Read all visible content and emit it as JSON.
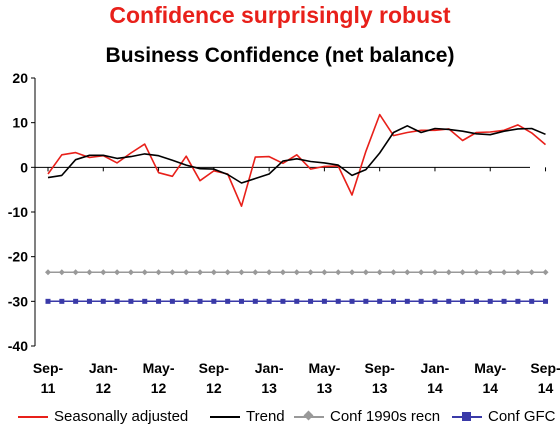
{
  "header": {
    "headline": "Confidence surprisingly robust"
  },
  "chart_data": {
    "type": "line",
    "title": "Business Confidence (net balance)",
    "xlabel": "",
    "ylabel": "",
    "ylim": [
      -40,
      20
    ],
    "yticks": [
      20,
      10,
      0,
      -10,
      -20,
      -30,
      -40
    ],
    "grid": false,
    "legend_position": "bottom",
    "x_tick_labels": [
      {
        "month": "Sep-",
        "year": "11"
      },
      {
        "month": "Jan-",
        "year": "12"
      },
      {
        "month": "May-",
        "year": "12"
      },
      {
        "month": "Sep-",
        "year": "12"
      },
      {
        "month": "Jan-",
        "year": "13"
      },
      {
        "month": "May-",
        "year": "13"
      },
      {
        "month": "Sep-",
        "year": "13"
      },
      {
        "month": "Jan-",
        "year": "14"
      },
      {
        "month": "May-",
        "year": "14"
      },
      {
        "month": "Sep-",
        "year": "14"
      }
    ],
    "x": [
      "Sep-11",
      "Oct-11",
      "Nov-11",
      "Dec-11",
      "Jan-12",
      "Feb-12",
      "Mar-12",
      "Apr-12",
      "May-12",
      "Jun-12",
      "Jul-12",
      "Aug-12",
      "Sep-12",
      "Oct-12",
      "Nov-12",
      "Dec-12",
      "Jan-13",
      "Feb-13",
      "Mar-13",
      "Apr-13",
      "May-13",
      "Jun-13",
      "Jul-13",
      "Aug-13",
      "Sep-13",
      "Oct-13",
      "Nov-13",
      "Dec-13",
      "Jan-14",
      "Feb-14",
      "Mar-14",
      "Apr-14",
      "May-14",
      "Jun-14",
      "Jul-14",
      "Aug-14",
      "Sep-14"
    ],
    "series": [
      {
        "name": "Seasonally adjusted",
        "color": "#e8201a",
        "style": "line",
        "values": [
          -1.5,
          2.8,
          3.3,
          2.2,
          2.6,
          1,
          3.2,
          5.2,
          -1.2,
          -2,
          2.5,
          -3,
          -0.8,
          -1.5,
          -8.7,
          2.3,
          2.4,
          0.9,
          2.8,
          -0.4,
          0.2,
          0.3,
          -6.2,
          3.6,
          11.8,
          7.1,
          7.8,
          8.3,
          8.3,
          8.6,
          6,
          7.8,
          7.9,
          8.3,
          9.5,
          7.7,
          5.1
        ]
      },
      {
        "name": "Trend",
        "color": "#000000",
        "style": "line",
        "values": [
          -2.3,
          -1.8,
          1.7,
          2.7,
          2.7,
          2,
          2.4,
          3,
          2.6,
          1.6,
          0.5,
          -0.3,
          -0.4,
          -1.6,
          -3.5,
          -2.5,
          -1.5,
          1.4,
          1.9,
          1.3,
          1,
          0.5,
          -1.8,
          -0.5,
          3.2,
          7.8,
          9.3,
          7.8,
          8.7,
          8.5,
          8.1,
          7.5,
          7.3,
          8.1,
          8.6,
          8.7,
          7.4
        ]
      },
      {
        "name": "Conf 1990s recn",
        "color": "#999999",
        "style": "markers-diamond",
        "values": [
          -23.5,
          -23.5,
          -23.5,
          -23.5,
          -23.5,
          -23.5,
          -23.5,
          -23.5,
          -23.5,
          -23.5,
          -23.5,
          -23.5,
          -23.5,
          -23.5,
          -23.5,
          -23.5,
          -23.5,
          -23.5,
          -23.5,
          -23.5,
          -23.5,
          -23.5,
          -23.5,
          -23.5,
          -23.5,
          -23.5,
          -23.5,
          -23.5,
          -23.5,
          -23.5,
          -23.5,
          -23.5,
          -23.5,
          -23.5,
          -23.5,
          -23.5,
          -23.5
        ]
      },
      {
        "name": "Conf GFC",
        "color": "#3a3aa8",
        "style": "markers-square",
        "values": [
          -30,
          -30,
          -30,
          -30,
          -30,
          -30,
          -30,
          -30,
          -30,
          -30,
          -30,
          -30,
          -30,
          -30,
          -30,
          -30,
          -30,
          -30,
          -30,
          -30,
          -30,
          -30,
          -30,
          -30,
          -30,
          -30,
          -30,
          -30,
          -30,
          -30,
          -30,
          -30,
          -30,
          -30,
          -30,
          -30,
          -30
        ]
      }
    ]
  }
}
